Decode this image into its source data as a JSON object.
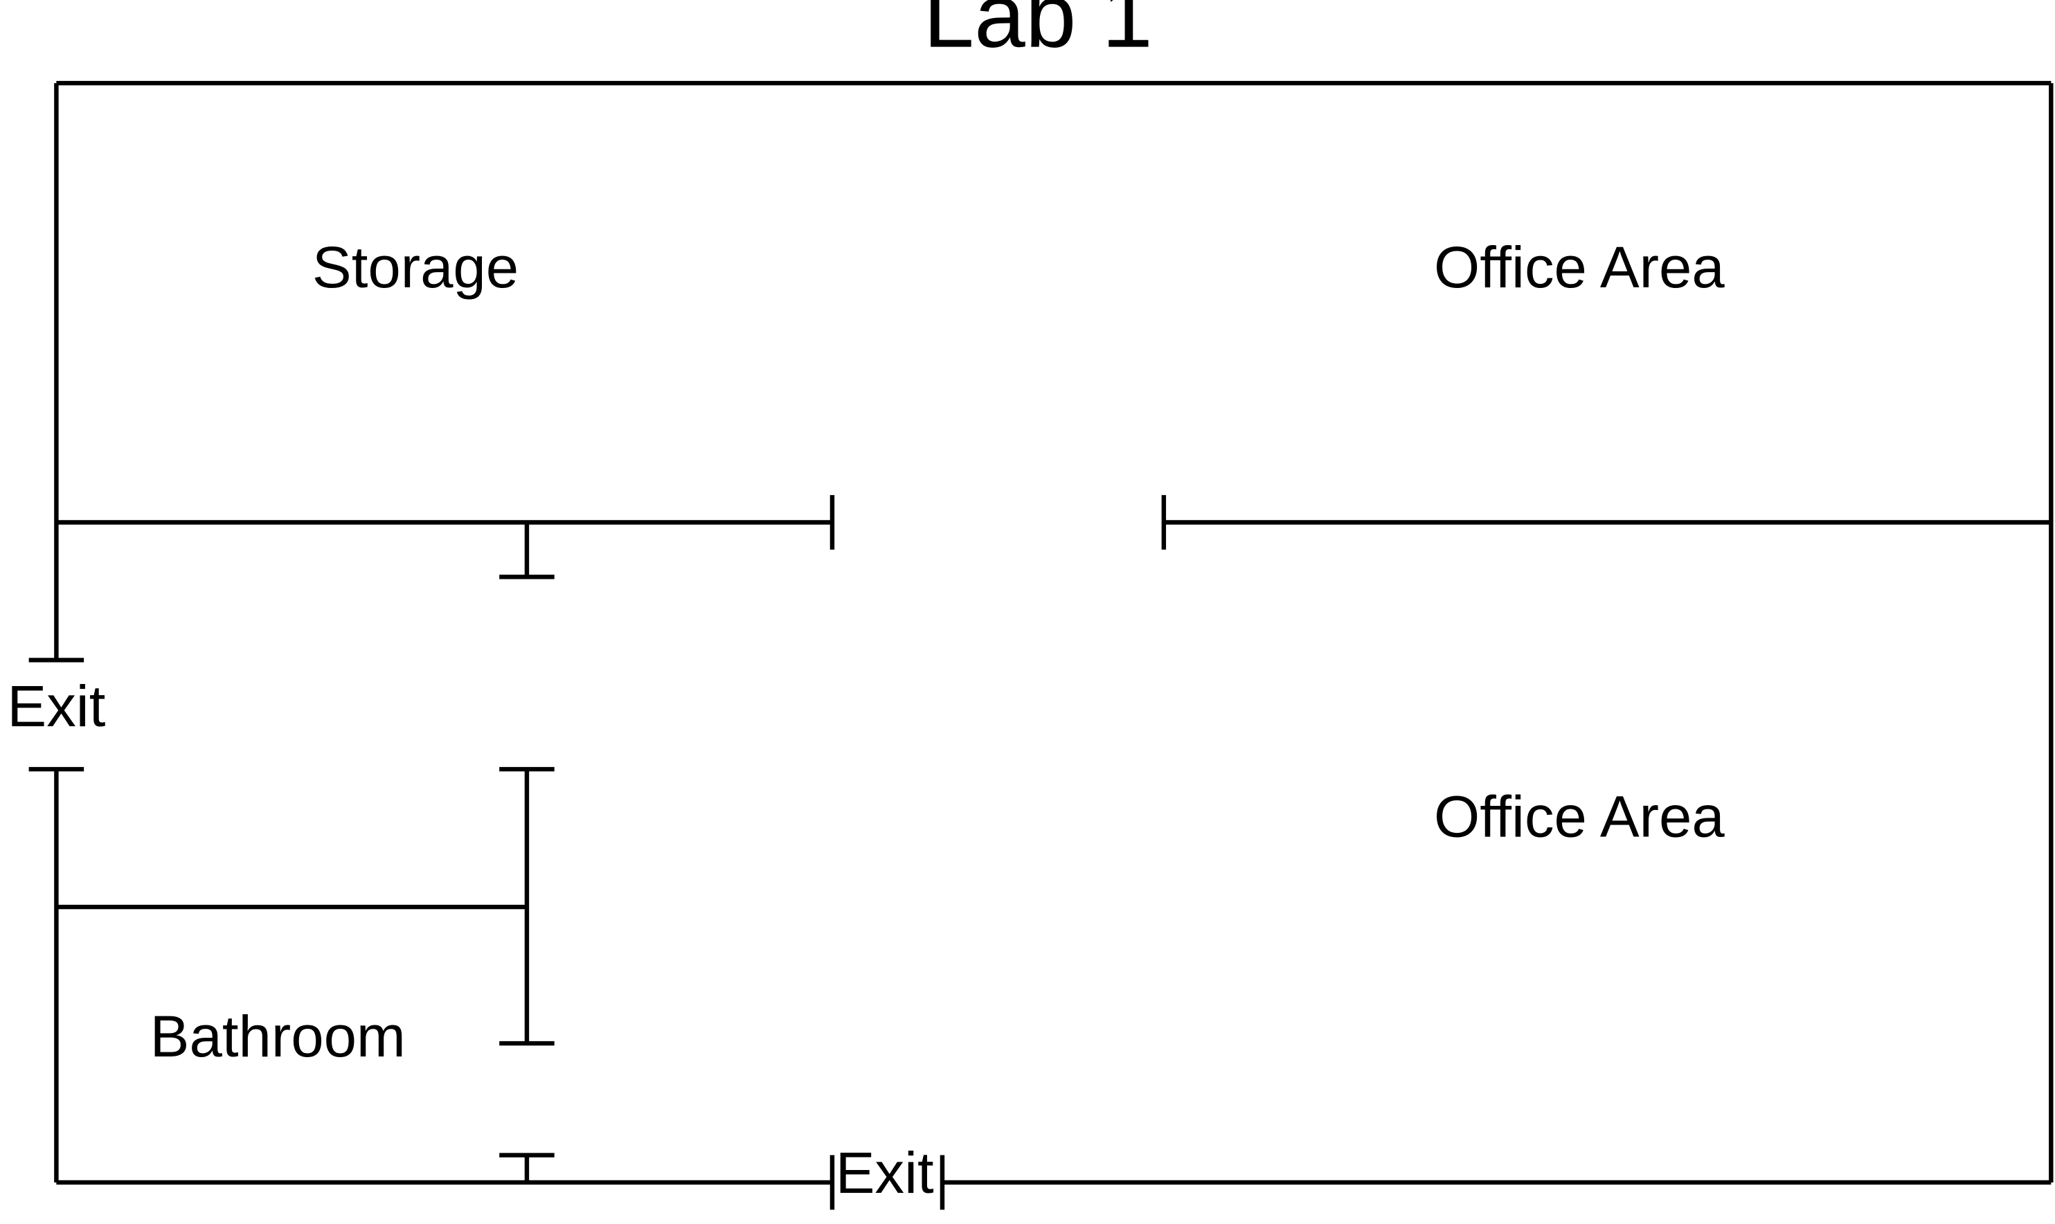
{
  "title": "Lab 1",
  "rooms": {
    "storage": "Storage",
    "office_area_top": "Office Area",
    "office_area_bottom": "Office Area",
    "bathroom": "Bathroom"
  },
  "exits": {
    "west": "Exit",
    "south": "Exit"
  },
  "colors": {
    "line": "#000000",
    "background": "#ffffff"
  }
}
